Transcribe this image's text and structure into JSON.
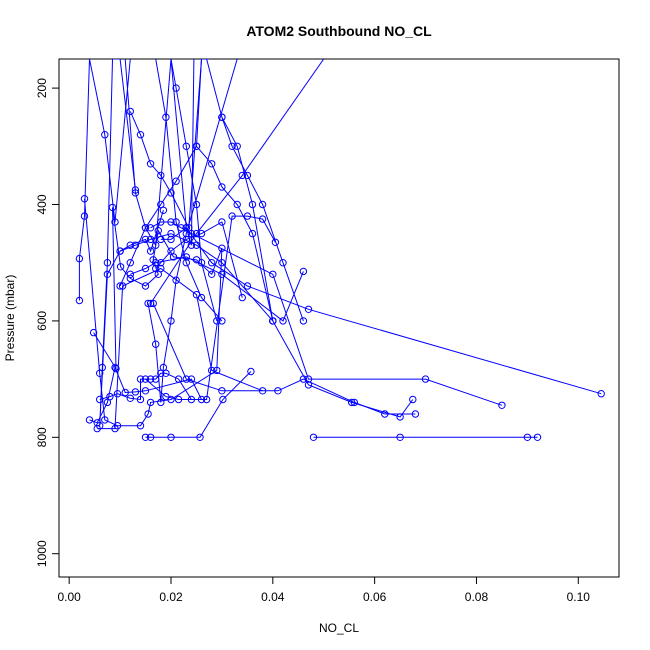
{
  "chart_data": {
    "type": "line",
    "title": "ATOM2 Southbound NO_CL",
    "xlabel": "NO_CL",
    "ylabel": "Pressure (mbar)",
    "xlim": [
      -0.002,
      0.108
    ],
    "ylim": [
      1040,
      150
    ],
    "x_ticks": [
      0.0,
      0.02,
      0.04,
      0.06,
      0.08,
      0.1
    ],
    "x_tick_labels": [
      "0.00",
      "0.02",
      "0.04",
      "0.06",
      "0.08",
      "0.10"
    ],
    "y_ticks": [
      200,
      400,
      600,
      800,
      1000
    ],
    "y_tick_labels": [
      "200",
      "400",
      "600",
      "800",
      "1000"
    ],
    "grid": false,
    "legend": "none",
    "color": "#0000ff",
    "series": [
      {
        "x": [
          0.0048,
          0.0092,
          0.0085,
          0.0101,
          0.012,
          0.015,
          0.0175,
          0.0165,
          0.0175,
          0.0205,
          0.025,
          0.028,
          0.03,
          0.029,
          0.02,
          0.016,
          0.0155,
          0.014,
          0.0095,
          0.007,
          0.006,
          0.003
        ],
        "y": [
          620,
          682,
          405,
          507,
          527,
          540,
          520,
          495,
          445,
          490,
          495,
          520,
          475,
          685,
          735,
          740,
          760,
          780,
          780,
          770,
          690,
          390
        ]
      },
      {
        "x": [
          0.002,
          0.002,
          0.003,
          0.004,
          0.007,
          0.009,
          0.012
        ],
        "y": [
          565,
          493,
          420,
          150,
          280,
          430,
          150
        ]
      },
      {
        "x": [
          0.004,
          0.0055,
          0.0075,
          0.009,
          0.011,
          0.013,
          0.015,
          0.024,
          0.026,
          0.0215,
          0.019,
          0.015
        ],
        "y": [
          770,
          775,
          740,
          680,
          723,
          722,
          720,
          700,
          735,
          735,
          730,
          700
        ]
      },
      {
        "x": [
          0.006,
          0.008,
          0.0095,
          0.012,
          0.014,
          0.014,
          0.016,
          0.017,
          0.018,
          0.019,
          0.0215,
          0.024,
          0.027,
          0.032,
          0.035,
          0.038,
          0.0405
        ],
        "y": [
          735,
          730,
          725,
          733,
          735,
          700,
          700,
          700,
          690,
          690,
          700,
          735,
          735,
          420,
          420,
          425,
          465
        ]
      },
      {
        "x": [
          0.0055,
          0.009,
          0.0105,
          0.018,
          0.025,
          0.028,
          0.038
        ],
        "y": [
          785,
          785,
          540,
          510,
          555,
          685,
          720
        ]
      },
      {
        "x": [
          0.015,
          0.016,
          0.02,
          0.0257,
          0.0302,
          0.0357
        ],
        "y": [
          800,
          800,
          800,
          800,
          735,
          687
        ]
      },
      {
        "x": [
          0.048,
          0.065,
          0.092,
          0.09
        ],
        "y": [
          800,
          800,
          800,
          800
        ]
      },
      {
        "x": [
          0.0165,
          0.023,
          0.03,
          0.041,
          0.046,
          0.056,
          0.062,
          0.068
        ],
        "y": [
          570,
          700,
          720,
          720,
          700,
          740,
          760,
          760
        ]
      },
      {
        "x": [
          0.01,
          0.013,
          0.016,
          0.02,
          0.025,
          0.03,
          0.04,
          0.047,
          0.0555,
          0.065,
          0.0675
        ],
        "y": [
          480,
          470,
          460,
          450,
          470,
          500,
          600,
          710,
          740,
          765,
          735
        ]
      },
      {
        "x": [
          0.012,
          0.015,
          0.017,
          0.023,
          0.03,
          0.042,
          0.046
        ],
        "y": [
          520,
          510,
          500,
          490,
          520,
          600,
          515
        ]
      },
      {
        "x": [
          0.016,
          0.018,
          0.02,
          0.022,
          0.024,
          0.04,
          0.047,
          0.07,
          0.085
        ],
        "y": [
          440,
          430,
          430,
          440,
          450,
          520,
          700,
          700,
          745
        ]
      },
      {
        "x": [
          0.018,
          0.02,
          0.023,
          0.028,
          0.035,
          0.047,
          0.1045
        ],
        "y": [
          460,
          460,
          440,
          500,
          540,
          580,
          725
        ]
      },
      {
        "x": [
          0.013,
          0.01,
          0.0085,
          0.0075,
          0.0065,
          0.006,
          0.0075,
          0.01,
          0.012,
          0.015,
          0.016,
          0.0185
        ],
        "y": [
          375,
          150,
          150,
          500,
          680,
          780,
          520,
          480,
          470,
          460,
          480,
          410
        ]
      },
      {
        "x": [
          0.011,
          0.013,
          0.015,
          0.017,
          0.02,
          0.023,
          0.024,
          0.0245
        ],
        "y": [
          150,
          380,
          440,
          470,
          150,
          440,
          470,
          150
        ]
      },
      {
        "x": [
          0.017,
          0.019,
          0.021,
          0.023,
          0.026,
          0.03
        ],
        "y": [
          150,
          250,
          430,
          500,
          560,
          600
        ]
      },
      {
        "x": [
          0.0155,
          0.017,
          0.018,
          0.0185,
          0.02,
          0.021,
          0.023,
          0.033
        ],
        "y": [
          570,
          640,
          740,
          680,
          600,
          530,
          450,
          150
        ]
      },
      {
        "x": [
          0.012,
          0.014,
          0.016,
          0.018,
          0.02,
          0.0235,
          0.026,
          0.0275
        ],
        "y": [
          240,
          280,
          330,
          350,
          380,
          440,
          150,
          150
        ]
      },
      {
        "x": [
          0.01,
          0.012,
          0.015,
          0.018,
          0.021,
          0.025,
          0.026
        ],
        "y": [
          540,
          500,
          440,
          400,
          360,
          300,
          150
        ]
      },
      {
        "x": [
          0.02,
          0.021,
          0.023,
          0.025,
          0.026,
          0.029
        ],
        "y": [
          150,
          200,
          300,
          400,
          500,
          600
        ]
      },
      {
        "x": [
          0.027,
          0.03,
          0.033,
          0.036,
          0.04
        ],
        "y": [
          150,
          250,
          300,
          400,
          600
        ]
      },
      {
        "x": [
          0.03,
          0.032,
          0.035,
          0.038,
          0.042,
          0.046
        ],
        "y": [
          250,
          300,
          350,
          400,
          500,
          600
        ]
      },
      {
        "x": [
          0.025,
          0.028,
          0.03,
          0.033,
          0.036,
          0.04
        ],
        "y": [
          300,
          330,
          370,
          400,
          450,
          600
        ]
      },
      {
        "x": [
          0.017,
          0.018,
          0.02,
          0.023,
          0.026,
          0.03,
          0.034
        ],
        "y": [
          510,
          500,
          480,
          460,
          450,
          430,
          560
        ]
      },
      {
        "x": [
          0.016,
          0.025,
          0.034,
          0.05
        ],
        "y": [
          570,
          450,
          350,
          150
        ]
      }
    ]
  }
}
